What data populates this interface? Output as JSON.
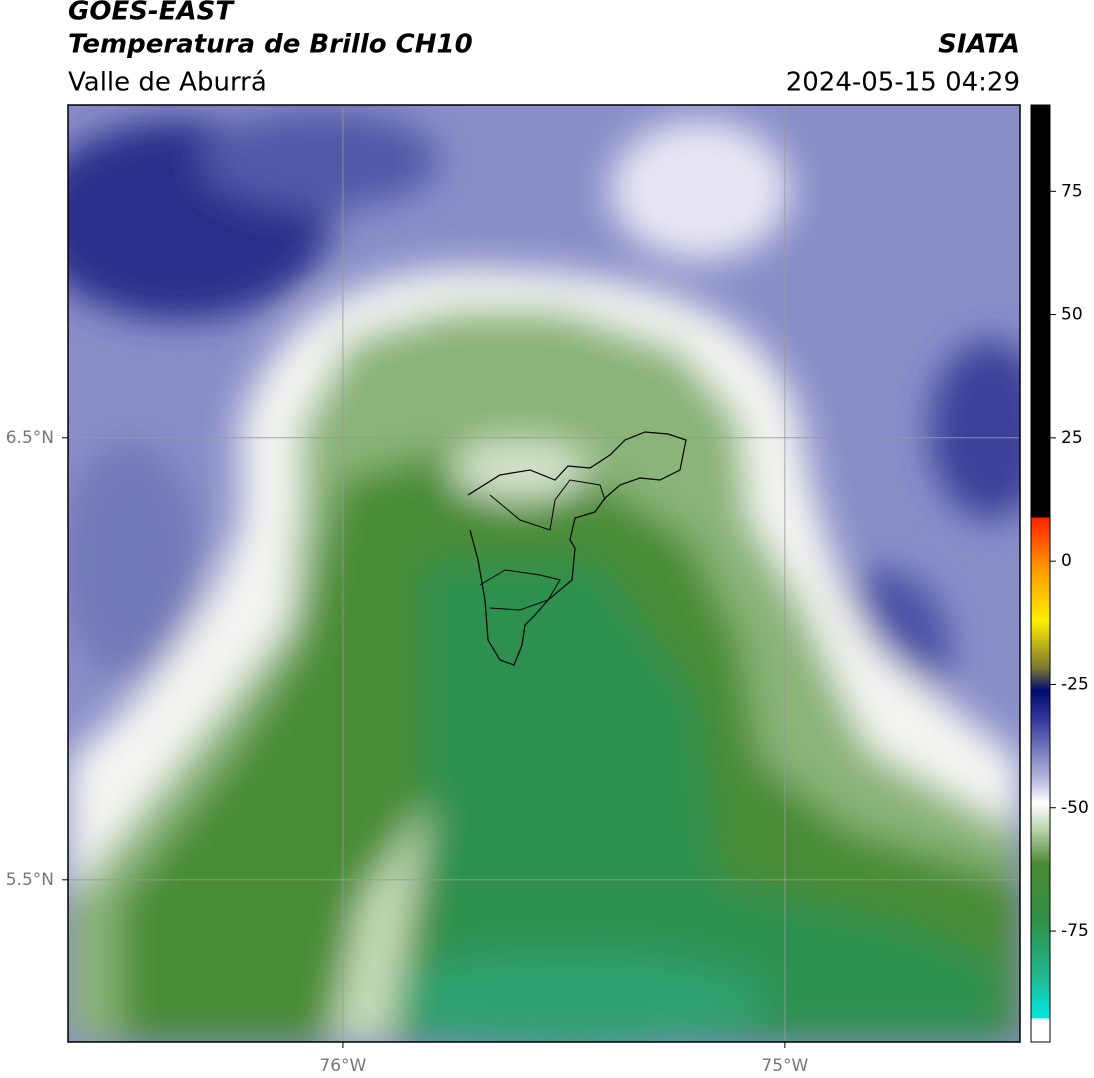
{
  "header": {
    "title": "GOES-EAST",
    "subtitle": "Temperatura de Brillo CH10",
    "region": "Valle de Aburrá",
    "source": "SIATA",
    "timestamp": "2024-05-15 04:29"
  },
  "map": {
    "xlim": [
      -76.622,
      -74.468
    ],
    "ylim": [
      5.133,
      7.253
    ],
    "xticks": [
      {
        "value": -76,
        "label": "76°W"
      },
      {
        "value": -75,
        "label": "75°W"
      }
    ],
    "yticks": [
      {
        "value": 6.5,
        "label": "6.5°N"
      },
      {
        "value": 5.5,
        "label": "5.5°N"
      }
    ],
    "grid": true
  },
  "colorbar": {
    "lim": [
      -97.5,
      92.5
    ],
    "ticks": [
      75,
      50,
      25,
      0,
      -25,
      -50,
      -75
    ]
  }
}
